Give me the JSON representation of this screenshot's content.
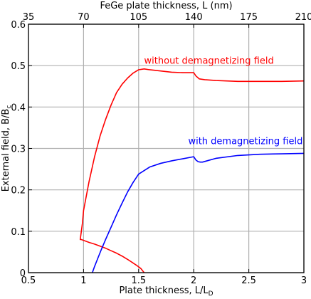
{
  "chart_data": {
    "type": "line",
    "xlabel": "Plate thickness, L/L",
    "xlabel_sub": "D",
    "ylabel": "External field, B/B",
    "ylabel_sub": "c",
    "top_axis_label": "FeGe plate thickness, L (nm)",
    "xlim": [
      0.5,
      3
    ],
    "ylim": [
      0,
      0.6
    ],
    "x_ticks": [
      0.5,
      1,
      1.5,
      2,
      2.5,
      3
    ],
    "x_tick_labels": [
      "0.5",
      "1",
      "1.5",
      "2",
      "2.5",
      "3"
    ],
    "y_ticks": [
      0,
      0.1,
      0.2,
      0.3,
      0.4,
      0.5,
      0.6
    ],
    "y_tick_labels": [
      "0",
      "0.1",
      "0.2",
      "0.3",
      "0.4",
      "0.5",
      "0.6"
    ],
    "top_ticks": [
      35,
      70,
      105,
      140,
      175,
      210
    ],
    "top_tick_labels": [
      "35",
      "70",
      "105",
      "140",
      "175",
      "210"
    ],
    "grid": true,
    "series": [
      {
        "name": "without demagnetizing field",
        "color": "#ff0000",
        "label_at": [
          1.55,
          0.505
        ],
        "x": [
          1.55,
          1.52,
          1.48,
          1.44,
          1.4,
          1.35,
          1.3,
          1.25,
          1.2,
          1.15,
          1.1,
          1.05,
          1.0,
          0.98,
          0.97,
          0.975,
          0.99,
          1.0,
          1.05,
          1.1,
          1.15,
          1.2,
          1.25,
          1.3,
          1.35,
          1.4,
          1.45,
          1.5,
          1.55,
          1.6,
          1.7,
          1.8,
          1.9,
          2.0,
          2.02,
          2.05,
          2.1,
          2.2,
          2.4,
          2.6,
          2.8,
          3.0
        ],
        "y": [
          0.0,
          0.01,
          0.018,
          0.025,
          0.032,
          0.04,
          0.047,
          0.053,
          0.059,
          0.064,
          0.069,
          0.073,
          0.078,
          0.08,
          0.08,
          0.09,
          0.12,
          0.15,
          0.22,
          0.28,
          0.33,
          0.37,
          0.405,
          0.435,
          0.455,
          0.47,
          0.482,
          0.49,
          0.492,
          0.49,
          0.487,
          0.484,
          0.483,
          0.483,
          0.475,
          0.468,
          0.466,
          0.464,
          0.462,
          0.462,
          0.462,
          0.463
        ]
      },
      {
        "name": "with demagnetizing field",
        "color": "#0000ff",
        "label_at": [
          1.95,
          0.31
        ],
        "x": [
          1.08,
          1.1,
          1.13,
          1.16,
          1.2,
          1.25,
          1.3,
          1.35,
          1.4,
          1.45,
          1.5,
          1.6,
          1.7,
          1.8,
          1.9,
          2.0,
          2.02,
          2.04,
          2.06,
          2.08,
          2.12,
          2.2,
          2.4,
          2.6,
          2.8,
          3.0
        ],
        "y": [
          0.0,
          0.015,
          0.035,
          0.055,
          0.08,
          0.11,
          0.14,
          0.168,
          0.195,
          0.218,
          0.238,
          0.255,
          0.264,
          0.27,
          0.275,
          0.28,
          0.272,
          0.268,
          0.267,
          0.267,
          0.27,
          0.276,
          0.283,
          0.286,
          0.287,
          0.288
        ]
      }
    ]
  }
}
